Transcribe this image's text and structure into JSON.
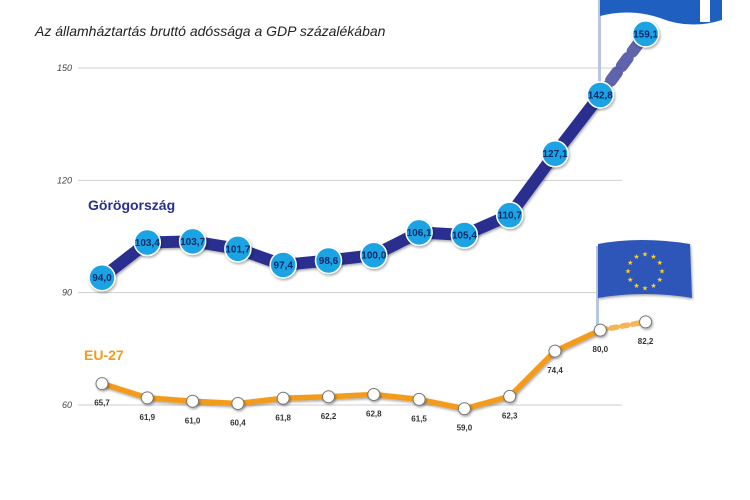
{
  "chart_data": {
    "type": "line",
    "subtitle": "Az államháztartás bruttó adóssága a GDP százalékában",
    "y_ticks": [
      "150",
      "120",
      "90",
      "60"
    ],
    "ylim": [
      55,
      165
    ],
    "grid": true,
    "series": [
      {
        "name": "Görögország",
        "color": "#2a2f8f",
        "marker_color": "#1aa3e3",
        "values": [
          94.0,
          103.4,
          103.7,
          101.7,
          97.4,
          98.6,
          100.0,
          106.1,
          105.4,
          110.7,
          127.1,
          142.8,
          159.1
        ],
        "labels": [
          "94,0",
          "103,4",
          "103,7",
          "101,7",
          "97,4",
          "98,6",
          "100,0",
          "106,1",
          "105,4",
          "110,7",
          "127,1",
          "142,8",
          "159,1"
        ],
        "last_point_projected": true
      },
      {
        "name": "EU-27",
        "color": "#f39c1c",
        "marker_color": "#ffffff",
        "values": [
          65.7,
          61.9,
          61.0,
          60.4,
          61.8,
          62.2,
          62.8,
          61.5,
          59.0,
          62.3,
          74.4,
          80.0,
          82.2
        ],
        "labels": [
          "65,7",
          "61,9",
          "61,0",
          "60,4",
          "61,8",
          "62,2",
          "62,8",
          "61,5",
          "59,0",
          "62,3",
          "74,4",
          "80,0",
          "82,2"
        ],
        "last_point_projected": true
      }
    ]
  },
  "colors": {
    "greek_flag_blue": "#1f5fbf",
    "eu_flag_blue": "#2d56b8",
    "eu_star_yellow": "#ffd21f",
    "grid": "#cfcfcf"
  },
  "icons": [
    "greek-flag-icon",
    "eu-flag-icon"
  ]
}
